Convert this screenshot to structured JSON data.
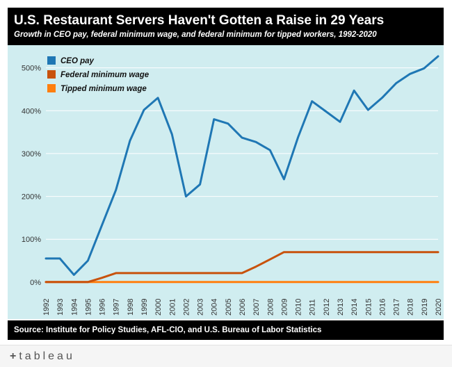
{
  "header": {
    "title": "U.S. Restaurant Servers Haven't Gotten a Raise in 29 Years",
    "subtitle": "Growth in CEO pay, federal minimum wage, and federal minimum for tipped workers, 1992-2020"
  },
  "source": {
    "text": "Source: Institute for Policy Studies, AFL-CIO, and U.S. Bureau of Labor Statistics"
  },
  "footer": {
    "brand": "tableau",
    "brand_mark": "+"
  },
  "colors": {
    "background": "#d0edf0",
    "ceo": "#1f77b4",
    "federal": "#c8520c",
    "tipped": "#ff7f0e"
  },
  "chart_data": {
    "type": "line",
    "title": "U.S. Restaurant Servers Haven't Gotten a Raise in 29 Years",
    "subtitle": "Growth in CEO pay, federal minimum wage, and federal minimum for tipped workers, 1992-2020",
    "xlabel": "",
    "ylabel": "",
    "x": [
      "1992",
      "1993",
      "1994",
      "1995",
      "1996",
      "1997",
      "1998",
      "1999",
      "2000",
      "2001",
      "2002",
      "2003",
      "2004",
      "2005",
      "2006",
      "2007",
      "2008",
      "2009",
      "2010",
      "2011",
      "2012",
      "2013",
      "2014",
      "2015",
      "2016",
      "2017",
      "2018",
      "2019",
      "2020"
    ],
    "ylim": [
      -10,
      540
    ],
    "yticks": [
      0,
      100,
      200,
      300,
      400,
      500
    ],
    "ytick_labels": [
      "0%",
      "100%",
      "200%",
      "300%",
      "400%",
      "500%"
    ],
    "grid": true,
    "legend": "top-left",
    "series": [
      {
        "name": "CEO pay",
        "color": "#1f77b4",
        "values": [
          55,
          55,
          17,
          50,
          133,
          215,
          330,
          402,
          430,
          345,
          200,
          228,
          380,
          370,
          337,
          327,
          308,
          240,
          338,
          422,
          398,
          374,
          447,
          402,
          430,
          464,
          486,
          499,
          527
        ]
      },
      {
        "name": "Federal minimum wage",
        "color": "#c8520c",
        "values": [
          0,
          0,
          0,
          0,
          10,
          21,
          21,
          21,
          21,
          21,
          21,
          21,
          21,
          21,
          21,
          36,
          53,
          70,
          70,
          70,
          70,
          70,
          70,
          70,
          70,
          70,
          70,
          70,
          70
        ]
      },
      {
        "name": "Tipped minimum wage",
        "color": "#ff7f0e",
        "values": [
          0,
          0,
          0,
          0,
          0,
          0,
          0,
          0,
          0,
          0,
          0,
          0,
          0,
          0,
          0,
          0,
          0,
          0,
          0,
          0,
          0,
          0,
          0,
          0,
          0,
          0,
          0,
          0,
          0
        ]
      }
    ]
  }
}
